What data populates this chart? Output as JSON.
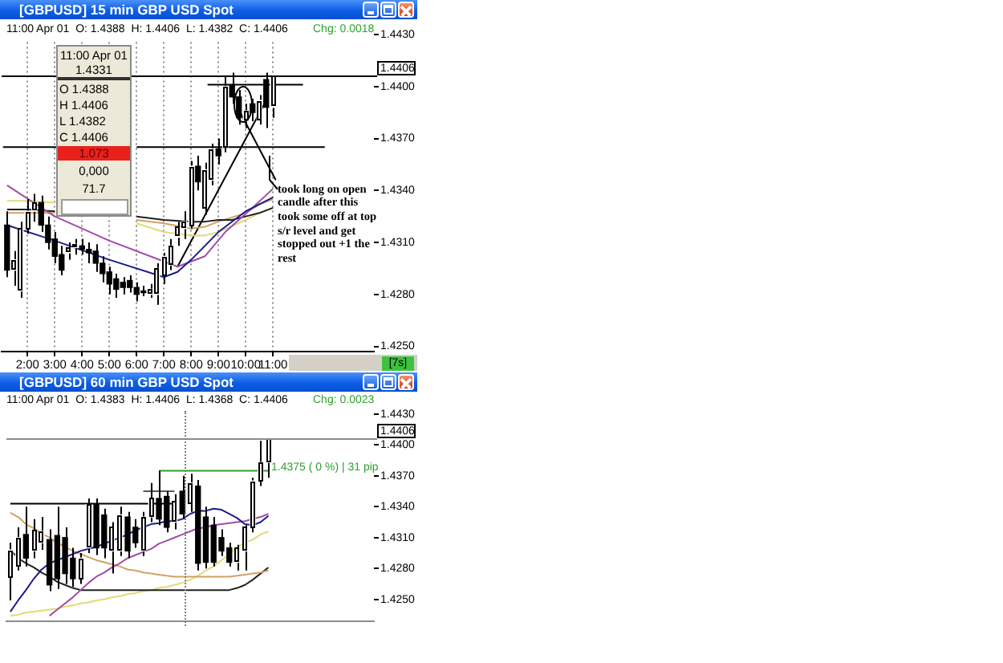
{
  "chart_data": [
    {
      "type": "candlestick",
      "title": "[GBPUSD] 15 min GBP USD Spot",
      "subtitle": "11:00 Apr 01  O: 1.4388  H: 1.4406  L: 1.4382  C: 1.4406",
      "x": [
        1.25,
        1.5,
        1.75,
        2,
        2.25,
        2.5,
        2.75,
        3,
        3.25,
        3.5,
        3.75,
        4,
        4.25,
        4.5,
        4.75,
        5,
        5.25,
        5.5,
        5.75,
        6,
        6.25,
        6.5,
        6.75,
        7,
        7.25,
        7.5,
        7.75,
        8,
        8.25,
        8.5,
        8.75,
        9,
        9.25,
        9.5,
        9.75,
        10,
        10.25,
        10.5,
        10.75,
        11
      ],
      "ohlc": [
        [
          1.432,
          1.4328,
          1.429,
          1.4294
        ],
        [
          1.4294,
          1.4305,
          1.4285,
          1.43
        ],
        [
          1.4282,
          1.4322,
          1.4278,
          1.4318
        ],
        [
          1.4318,
          1.4335,
          1.4315,
          1.4328
        ],
        [
          1.4328,
          1.4338,
          1.4322,
          1.4333
        ],
        [
          1.4333,
          1.4337,
          1.4316,
          1.432
        ],
        [
          1.432,
          1.4325,
          1.4306,
          1.431
        ],
        [
          1.4312,
          1.4316,
          1.4298,
          1.4302
        ],
        [
          1.4303,
          1.4308,
          1.4291,
          1.4294
        ],
        [
          1.4304,
          1.431,
          1.43,
          1.4307
        ],
        [
          1.4307,
          1.4312,
          1.4303,
          1.4309
        ],
        [
          1.4308,
          1.4312,
          1.4303,
          1.4306
        ],
        [
          1.4306,
          1.431,
          1.4298,
          1.4304
        ],
        [
          1.4305,
          1.4309,
          1.4293,
          1.4298
        ],
        [
          1.4298,
          1.4302,
          1.4287,
          1.4292
        ],
        [
          1.4293,
          1.4296,
          1.428,
          1.4286
        ],
        [
          1.4289,
          1.4292,
          1.4278,
          1.4283
        ],
        [
          1.4287,
          1.429,
          1.428,
          1.4284
        ],
        [
          1.4288,
          1.4291,
          1.4281,
          1.4284
        ],
        [
          1.4284,
          1.4287,
          1.4276,
          1.428
        ],
        [
          1.4282,
          1.4285,
          1.4279,
          1.4281
        ],
        [
          1.428,
          1.4286,
          1.4278,
          1.4283
        ],
        [
          1.428,
          1.4298,
          1.4274,
          1.4295
        ],
        [
          1.4291,
          1.4304,
          1.4286,
          1.4302
        ],
        [
          1.4297,
          1.4312,
          1.4294,
          1.4308
        ],
        [
          1.4313,
          1.4322,
          1.4308,
          1.4319
        ],
        [
          1.4318,
          1.4328,
          1.4312,
          1.4322
        ],
        [
          1.432,
          1.4357,
          1.4318,
          1.4354
        ],
        [
          1.4354,
          1.436,
          1.434,
          1.4345
        ],
        [
          1.433,
          1.4356,
          1.4326,
          1.4352
        ],
        [
          1.4346,
          1.4367,
          1.4343,
          1.4364
        ],
        [
          1.4364,
          1.437,
          1.4355,
          1.436
        ],
        [
          1.4365,
          1.4406,
          1.4362,
          1.44
        ],
        [
          1.4401,
          1.4408,
          1.439,
          1.4394
        ],
        [
          1.4394,
          1.4398,
          1.4378,
          1.4382
        ],
        [
          1.438,
          1.439,
          1.4376,
          1.4386
        ],
        [
          1.439,
          1.4393,
          1.438,
          1.4385
        ],
        [
          1.4381,
          1.4395,
          1.4378,
          1.4392
        ],
        [
          1.4404,
          1.4408,
          1.4376,
          1.4388
        ],
        [
          1.4388,
          1.4406,
          1.4382,
          1.4406
        ]
      ],
      "series": [
        {
          "type": "line",
          "color": "#1c1c8c",
          "x": [
            1.25,
            3,
            5,
            7,
            7.5,
            8,
            9,
            10,
            11
          ],
          "values": [
            1.432,
            1.4311,
            1.43,
            1.429,
            1.4293,
            1.43,
            1.4316,
            1.4328,
            1.4336
          ]
        },
        {
          "type": "line",
          "color": "#a04ca8",
          "x": [
            1.25,
            3,
            5,
            7,
            7.5,
            8.5,
            9.25,
            10.25,
            11
          ],
          "values": [
            1.4343,
            1.4325,
            1.4311,
            1.4299,
            1.4296,
            1.4302,
            1.4316,
            1.433,
            1.4341
          ]
        },
        {
          "type": "line",
          "color": "#202020",
          "x": [
            1.25,
            2,
            3,
            4.5,
            6,
            7,
            8,
            8.5,
            9,
            9.5,
            10,
            10.5,
            11
          ],
          "values": [
            1.4329,
            1.4329,
            1.4328,
            null,
            1.4325,
            1.4323,
            1.4322,
            1.4322,
            1.4323,
            1.4323,
            1.4325,
            1.4327,
            1.433
          ]
        },
        {
          "type": "line",
          "color": "#d2a262",
          "x": [
            1.25,
            2,
            3,
            4.5,
            6,
            7,
            8,
            8.5,
            9,
            10,
            10.5,
            11
          ],
          "values": [
            1.4327,
            1.4327,
            1.4327,
            null,
            1.4323,
            1.4321,
            1.4318,
            1.4319,
            1.4322,
            1.4327,
            1.4332,
            1.4335
          ]
        },
        {
          "type": "line",
          "color": "#e2da78",
          "x": [
            1.25,
            2,
            3,
            4.5,
            6,
            7,
            8,
            8.5,
            9,
            10,
            10.5,
            11
          ],
          "values": [
            1.4334,
            1.4334,
            1.4333,
            null,
            1.4321,
            1.4316,
            1.4314,
            1.4314,
            1.4316,
            1.4323,
            1.4327,
            1.433
          ]
        },
        {
          "type": "line",
          "color": "#000000",
          "x": [
            1.1,
            3.1,
            4.5,
            6,
            12.9
          ],
          "values": [
            1.4365,
            1.4365,
            null,
            1.4365,
            1.4365
          ]
        },
        {
          "type": "line",
          "color": "#000000",
          "x": [
            8.6,
            12.1
          ],
          "values": [
            1.4401,
            1.4401
          ]
        },
        {
          "type": "line",
          "color": "#000000",
          "x": [
            9.7,
            11.1
          ],
          "values": [
            1.4388,
            1.4346
          ]
        },
        {
          "type": "line",
          "color": "#000000",
          "x": [
            7.5,
            10.75
          ],
          "values": [
            1.4296,
            1.4392
          ]
        }
      ],
      "xlim": [
        1.05,
        14.7
      ],
      "xticks": [
        {
          "value": 2,
          "label": "2:00"
        },
        {
          "value": 3,
          "label": "3:00"
        },
        {
          "value": 4,
          "label": "4:00"
        },
        {
          "value": 5,
          "label": "5:00"
        },
        {
          "value": 6,
          "label": "6:00"
        },
        {
          "value": 7,
          "label": "7:00"
        },
        {
          "value": 8,
          "label": "8:00"
        },
        {
          "value": 9,
          "label": "9:00"
        },
        {
          "value": 10,
          "label": "10:00"
        },
        {
          "value": 11,
          "label": "11:00"
        }
      ],
      "ylim": [
        1.4247,
        1.4434
      ],
      "yticks": [
        {
          "value": 1.443,
          "label": "1.4430"
        },
        {
          "value": 1.44,
          "label": "1.4400"
        },
        {
          "value": 1.437,
          "label": "1.4370"
        },
        {
          "value": 1.434,
          "label": "1.4340"
        },
        {
          "value": 1.431,
          "label": "1.4310"
        },
        {
          "value": 1.428,
          "label": "1.4280"
        },
        {
          "value": 1.425,
          "label": "1.4250"
        }
      ],
      "ref_lines": [
        {
          "axis": "y",
          "value": 1.4406,
          "label": "1.4406",
          "color": "#000000"
        }
      ],
      "annotations": [
        "Chg: 0.0018",
        "11:00 Apr 01",
        "1.4331",
        "O 1.4388",
        "H 1.4406",
        "L 1.4382",
        "C 1.4406",
        "1.073",
        "0,000",
        "71.7",
        "took long on open\ncandle after this\ntook some off at top\ns/r level and get\nstopped out +1 the\nrest",
        "[7s]"
      ],
      "grid": "x",
      "marker": "none",
      "line_style": "solid"
    },
    {
      "type": "candlestick",
      "title": "[GBPUSD] 60 min GBP USD Spot",
      "subtitle": "11:00 Apr 01  O: 1.4383  H: 1.4406  L: 1.4368  C: 1.4406",
      "categories": [
        null,
        null,
        null,
        null,
        null,
        null,
        null,
        null,
        null,
        null,
        null,
        null,
        null,
        null,
        null,
        null,
        null,
        null,
        null,
        null,
        null,
        null,
        null,
        null,
        null,
        null,
        null,
        null,
        null,
        null,
        null,
        null,
        null,
        null,
        null,
        null,
        null,
        null,
        null,
        null,
        null,
        null,
        null,
        null,
        null,
        null,
        null
      ],
      "ohlc": [
        [
          1.4272,
          1.4305,
          1.4249,
          1.4298
        ],
        [
          1.4282,
          1.432,
          1.4278,
          1.431
        ],
        [
          1.4313,
          1.434,
          1.4282,
          1.429
        ],
        [
          1.4297,
          1.4328,
          1.429,
          1.4317
        ],
        [
          1.4305,
          1.433,
          1.4298,
          1.4316
        ],
        [
          1.4308,
          1.4318,
          1.4258,
          1.4264
        ],
        [
          1.4312,
          1.434,
          1.426,
          1.427
        ],
        [
          1.431,
          1.432,
          1.4265,
          1.4275
        ],
        [
          1.429,
          1.43,
          1.4262,
          1.427
        ],
        [
          1.427,
          1.4295,
          1.4265,
          1.429
        ],
        [
          1.43,
          1.4348,
          1.4295,
          1.4342
        ],
        [
          1.4342,
          1.4348,
          1.4293,
          1.43
        ],
        [
          1.4332,
          1.4338,
          1.429,
          1.43
        ],
        [
          1.4297,
          1.4325,
          1.4275,
          1.432
        ],
        [
          1.4297,
          1.434,
          1.4292,
          1.4332
        ],
        [
          1.433,
          1.4335,
          1.429,
          1.4297
        ],
        [
          1.432,
          1.4328,
          1.43,
          1.4305
        ],
        [
          1.4297,
          1.4335,
          1.4292,
          1.433
        ],
        [
          1.433,
          1.4363,
          1.4325,
          1.4348
        ],
        [
          1.4348,
          1.4375,
          1.4322,
          1.4328
        ],
        [
          1.435,
          1.4355,
          1.4315,
          1.432
        ],
        [
          1.4325,
          1.4352,
          1.4318,
          1.4345
        ],
        [
          1.4355,
          1.437,
          1.4328,
          1.4333
        ],
        [
          1.4343,
          1.4372,
          1.4335,
          1.4363
        ],
        [
          1.436,
          1.4366,
          1.4278,
          1.4285
        ],
        [
          1.433,
          1.434,
          1.428,
          1.4286
        ],
        [
          1.4322,
          1.433,
          1.4282,
          1.4286
        ],
        [
          1.431,
          1.4318,
          1.4292,
          1.4297
        ],
        [
          1.43,
          1.4305,
          1.4282,
          1.4286
        ],
        [
          1.4286,
          1.4303,
          1.4278,
          1.43
        ],
        [
          1.4297,
          1.4322,
          1.4278,
          1.432
        ],
        [
          1.432,
          1.4368,
          1.4315,
          1.4365
        ],
        [
          1.4365,
          1.4404,
          1.436,
          1.4383
        ],
        [
          1.4383,
          1.4406,
          1.4368,
          1.4406
        ],
        null,
        null,
        null,
        null,
        null,
        null,
        null,
        null,
        null,
        null,
        null,
        null,
        null
      ],
      "series": [
        {
          "type": "line",
          "color": "#1c1c8c",
          "values": [
            1.4238,
            1.4249,
            1.4259,
            1.427,
            1.4279,
            1.4285,
            1.4288,
            1.4291,
            1.4294,
            1.4297,
            1.4299,
            1.4301,
            1.4304,
            1.4307,
            1.431,
            1.4313,
            1.4317,
            1.432,
            1.4323,
            1.4324,
            1.4326,
            1.4326,
            1.4328,
            1.4333,
            1.4336,
            1.4336,
            1.4338,
            1.4337,
            1.4333,
            1.4329,
            1.4323,
            1.4322,
            1.4325,
            1.4331,
            null,
            null,
            null,
            null,
            null,
            null,
            null,
            null,
            null,
            null,
            null,
            null,
            null
          ]
        },
        {
          "type": "line",
          "color": "#a04ca8",
          "values": [
            null,
            null,
            null,
            null,
            null,
            1.4234,
            1.424,
            1.4246,
            1.4252,
            1.4259,
            1.4266,
            1.4272,
            1.4276,
            1.4281,
            1.4285,
            1.429,
            1.4293,
            1.4296,
            1.4299,
            1.4304,
            1.4307,
            1.431,
            1.4313,
            1.4316,
            1.4319,
            1.432,
            1.4322,
            1.4323,
            1.4324,
            1.4325,
            1.4326,
            1.4328,
            1.433,
            1.4333,
            null,
            null,
            null,
            null,
            null,
            null,
            null,
            null,
            null,
            null,
            null,
            null,
            null
          ]
        },
        {
          "type": "line",
          "color": "#d2a262",
          "values": [
            1.4334,
            1.433,
            1.4323,
            1.4319,
            1.4314,
            1.431,
            1.4305,
            1.4301,
            1.4297,
            1.4294,
            1.4291,
            1.4288,
            1.4286,
            1.4284,
            1.4282,
            1.4279,
            1.4278,
            1.4276,
            1.4275,
            1.4274,
            1.4273,
            1.4272,
            1.4272,
            1.4272,
            1.4272,
            1.4272,
            1.4272,
            1.4272,
            1.4272,
            1.4273,
            1.4274,
            1.4275,
            1.4276,
            1.4278,
            null,
            null,
            null,
            null,
            null,
            null,
            null,
            null,
            null,
            null,
            null,
            null,
            null
          ]
        },
        {
          "type": "line",
          "color": "#202020",
          "values": [
            1.4298,
            1.429,
            1.4285,
            1.4281,
            1.4276,
            1.4272,
            1.4267,
            1.4264,
            1.4261,
            1.4259,
            1.4259,
            1.4259,
            1.4259,
            1.4259,
            1.4259,
            1.4259,
            1.4259,
            1.4259,
            1.4259,
            1.4259,
            1.4259,
            1.4259,
            1.4259,
            1.4259,
            1.4259,
            1.4259,
            1.4259,
            1.4259,
            1.4259,
            1.4261,
            1.4264,
            1.4269,
            1.4275,
            1.4281,
            null,
            null,
            null,
            null,
            null,
            null,
            null,
            null,
            null,
            null,
            null,
            null,
            null
          ]
        },
        {
          "type": "line",
          "color": "#e2da78",
          "values": [
            1.4234,
            1.4235,
            1.4237,
            1.4238,
            1.4239,
            1.424,
            1.4241,
            1.4243,
            1.4244,
            1.4246,
            1.4247,
            1.4249,
            1.425,
            1.4252,
            1.4253,
            1.4255,
            1.4256,
            1.4258,
            1.4259,
            1.4261,
            1.4262,
            1.4264,
            1.4266,
            1.4269,
            1.4273,
            1.4278,
            1.4282,
            1.4288,
            1.4294,
            1.4301,
            1.4305,
            1.4308,
            1.4313,
            1.4316,
            null,
            null,
            null,
            null,
            null,
            null,
            null,
            null,
            null,
            null,
            null,
            null,
            null
          ]
        },
        {
          "type": "line",
          "color": "#5a5a5a",
          "values": [
            null,
            null,
            null,
            null,
            null,
            null,
            null,
            null,
            null,
            null,
            null,
            null,
            null,
            null,
            null,
            null,
            null,
            1.4355,
            1.4355,
            1.4355,
            1.4355,
            1.4355,
            null,
            null,
            null,
            null,
            null,
            null,
            null,
            null,
            null,
            null,
            null,
            null,
            null,
            null,
            null,
            null,
            null,
            null,
            null,
            null,
            null,
            null,
            null,
            null,
            null
          ]
        },
        {
          "type": "line",
          "color": "#000000",
          "values": [
            1.4343,
            1.4343,
            1.4343,
            1.4343,
            1.4343,
            1.4343,
            1.4343,
            1.4343,
            1.4343,
            1.4343,
            1.4343,
            1.4343,
            1.4343,
            1.4343,
            1.4343,
            1.4343,
            1.4343,
            1.4343,
            1.4343,
            1.4343,
            1.4343,
            1.4343,
            null,
            null,
            null,
            null,
            null,
            null,
            null,
            null,
            null,
            null,
            null,
            null,
            null,
            null,
            null,
            null,
            null,
            null,
            null,
            null,
            null,
            null,
            null,
            null,
            null
          ]
        },
        {
          "type": "line",
          "color": "#2e9e2e",
          "values": [
            null,
            null,
            null,
            null,
            null,
            null,
            null,
            null,
            null,
            null,
            null,
            null,
            null,
            null,
            null,
            null,
            null,
            null,
            null,
            1.4375,
            1.4375,
            1.4375,
            1.4375,
            1.4375,
            1.4375,
            1.4375,
            1.4375,
            1.4375,
            1.4375,
            1.4375,
            1.4375,
            1.4375,
            1.4375,
            1.4375,
            null,
            null,
            null,
            null,
            null,
            null,
            null,
            null,
            null,
            null,
            null,
            null,
            null
          ]
        }
      ],
      "ylim": [
        1.4229,
        1.4433
      ],
      "yticks": [
        {
          "value": 1.443,
          "label": "1.4430"
        },
        {
          "value": 1.44,
          "label": "1.4400"
        },
        {
          "value": 1.437,
          "label": "1.4370"
        },
        {
          "value": 1.434,
          "label": "1.4340"
        },
        {
          "value": 1.431,
          "label": "1.4310"
        },
        {
          "value": 1.428,
          "label": "1.4280"
        },
        {
          "value": 1.425,
          "label": "1.4250"
        }
      ],
      "ref_lines": [
        {
          "axis": "y",
          "value": 1.4406,
          "label": "1.4406",
          "color": "#8c8c8c"
        }
      ],
      "annotations": [
        "Chg: 0.0023",
        "1.4375 ( 0 %) | 31 pip"
      ],
      "tick_labels": "y",
      "marker": "none",
      "line_style": "solid"
    }
  ]
}
